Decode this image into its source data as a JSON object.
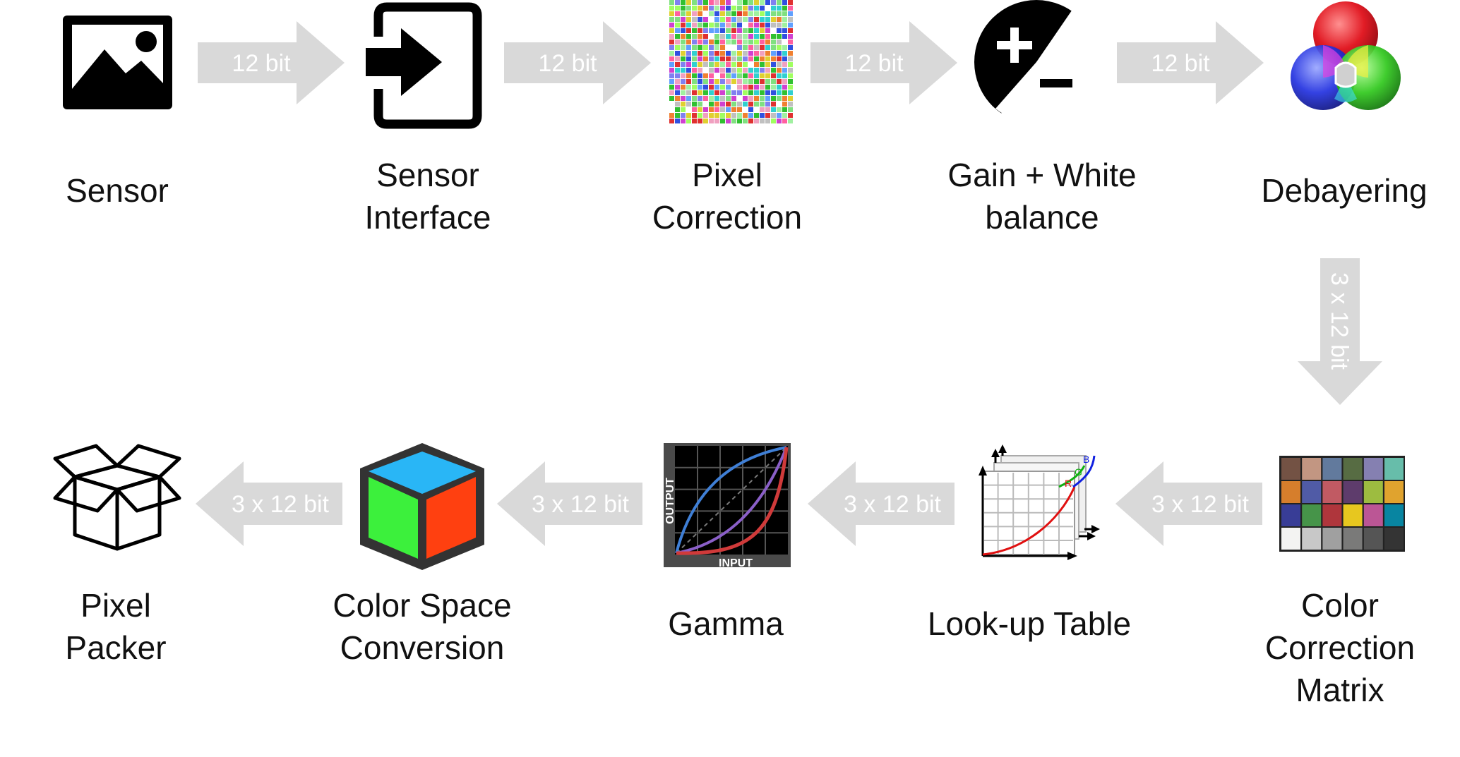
{
  "diagram": {
    "colors": {
      "arrow": "#d9d9d9",
      "arrow_text": "#ffffff",
      "icon_dark": "#000000"
    },
    "top_row": [
      {
        "label": "Sensor",
        "icon": "image-icon"
      },
      {
        "label": "Sensor\nInterface",
        "icon": "sign-in-icon"
      },
      {
        "label": "Pixel\nCorrection",
        "icon": "pixel-mosaic-icon"
      },
      {
        "label": "Gain + White\nbalance",
        "icon": "plus-minus-exposure-icon"
      },
      {
        "label": "Debayering",
        "icon": "rgb-circles-icon"
      }
    ],
    "bottom_row": [
      {
        "label": "Pixel\nPacker",
        "icon": "box-icon"
      },
      {
        "label": "Color Space\nConversion",
        "icon": "color-cube-icon"
      },
      {
        "label": "Gamma",
        "icon": "gamma-curve-icon"
      },
      {
        "label": "Look-up Table",
        "icon": "lookup-table-icon"
      },
      {
        "label": "Color\nCorrection\nMatrix",
        "icon": "color-checker-icon"
      }
    ],
    "top_arrows": [
      "12 bit",
      "12 bit",
      "12 bit",
      "12 bit"
    ],
    "down_arrow": "3 x 12 bit",
    "bottom_arrows": [
      "3 x 12 bit",
      "3 x 12 bit",
      "3 x 12 bit",
      "3 x 12 bit"
    ],
    "lut_curve_labels": {
      "r": "R",
      "g": "G",
      "b": "B"
    },
    "gamma_axis_labels": {
      "x": "INPUT",
      "y": "OUTPUT"
    }
  }
}
